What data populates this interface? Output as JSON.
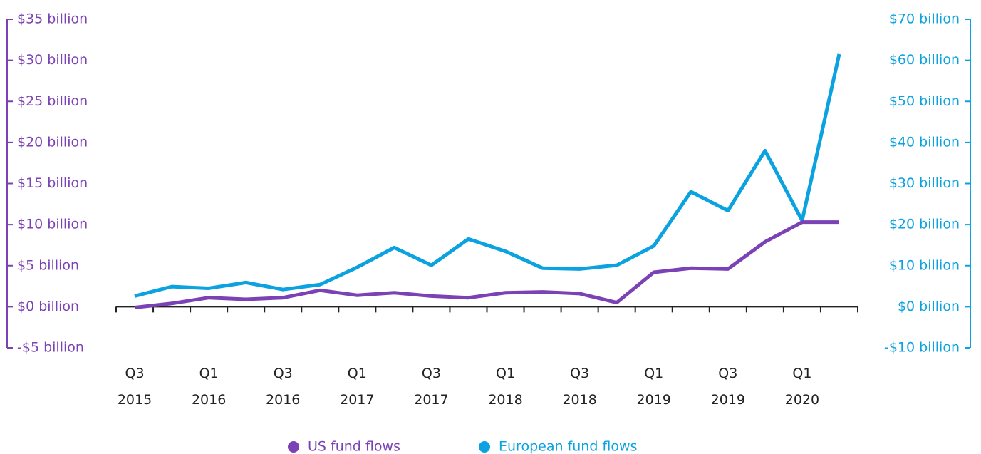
{
  "chart_data": {
    "type": "line",
    "categories": [
      "Q3\n2015",
      null,
      "Q1\n2016",
      null,
      "Q3\n2016",
      null,
      "Q1\n2017",
      null,
      "Q3\n2017",
      null,
      "Q1\n2018",
      null,
      "Q3\n2018",
      null,
      "Q1\n2019",
      null,
      "Q3\n2019",
      null,
      "Q1\n2020",
      null
    ],
    "series": [
      {
        "name": "US fund flows",
        "color": "#7b42b5",
        "axis": "y",
        "values": [
          -0.1,
          0.4,
          1.1,
          0.9,
          1.1,
          2.0,
          1.4,
          1.7,
          1.3,
          1.1,
          1.7,
          1.8,
          1.6,
          0.5,
          4.2,
          4.7,
          4.6,
          7.9,
          10.3,
          10.3
        ]
      },
      {
        "name": "European fund flows",
        "color": "#0aa2e0",
        "axis": "y2",
        "values": [
          2.6,
          4.9,
          4.5,
          5.9,
          4.2,
          5.4,
          9.6,
          14.4,
          10.1,
          16.5,
          13.5,
          9.4,
          9.2,
          10.1,
          14.8,
          28.0,
          23.4,
          38.0,
          21.0,
          61.5
        ]
      }
    ],
    "ylim": [
      -5,
      35
    ],
    "yticks": [
      {
        "value": -5,
        "label": "-$5 billion"
      },
      {
        "value": 0,
        "label": "$0 billion"
      },
      {
        "value": 5,
        "label": "$5 billion"
      },
      {
        "value": 10,
        "label": "$10 billion"
      },
      {
        "value": 15,
        "label": "$15 billion"
      },
      {
        "value": 20,
        "label": "$20 billion"
      },
      {
        "value": 25,
        "label": "$25 billion"
      },
      {
        "value": 30,
        "label": "$30 billion"
      },
      {
        "value": 35,
        "label": "$35 billion"
      }
    ],
    "y2lim": [
      -10,
      70
    ],
    "y2ticks": [
      {
        "value": -10,
        "label": "-$10 billion"
      },
      {
        "value": 0,
        "label": "$0 billion"
      },
      {
        "value": 10,
        "label": "$10 billion"
      },
      {
        "value": 20,
        "label": "$20 billion"
      },
      {
        "value": 30,
        "label": "$30 billion"
      },
      {
        "value": 40,
        "label": "$40 billion"
      },
      {
        "value": 50,
        "label": "$50 billion"
      },
      {
        "value": 60,
        "label": "$60 billion"
      },
      {
        "value": 70,
        "label": "$70 billion"
      }
    ],
    "legend": "bottom"
  }
}
